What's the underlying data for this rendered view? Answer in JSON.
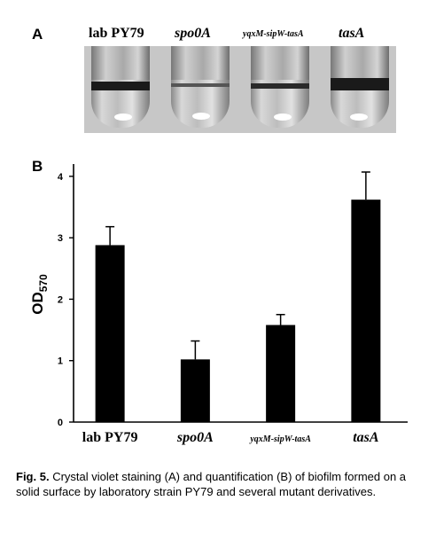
{
  "panel_a": {
    "letter": "A",
    "tubes": [
      {
        "label": "lab PY79",
        "italic": false
      },
      {
        "label": "spo0A",
        "italic": true
      },
      {
        "label": "yqxM-sipW-tasA",
        "italic": true
      },
      {
        "label": "tasA",
        "italic": true
      }
    ]
  },
  "panel_b": {
    "letter": "B"
  },
  "chart_data": {
    "type": "bar",
    "categories": [
      "lab PY79",
      "spo0A",
      "yqxM-sipW-tasA",
      "tasA"
    ],
    "values": [
      2.88,
      1.02,
      1.58,
      3.62
    ],
    "errors": [
      0.3,
      0.3,
      0.17,
      0.45
    ],
    "ylabel_main": "OD",
    "ylabel_sub": "570",
    "ylim": [
      0,
      4.2
    ],
    "yticks": [
      "0",
      "1",
      "2",
      "3",
      "4"
    ],
    "bar_color": "#000000",
    "grid": false
  },
  "caption": {
    "fig_label": "Fig. 5.",
    "text": "Crystal violet staining (A) and quantification (B) of biofilm formed on a solid surface by laboratory strain PY79 and several mutant derivatives."
  }
}
